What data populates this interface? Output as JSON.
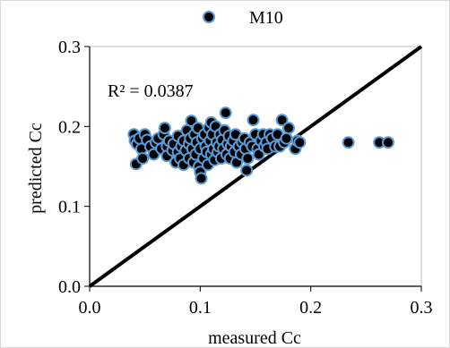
{
  "chart_data": {
    "type": "scatter",
    "title": "",
    "xlabel": "measured Cc",
    "ylabel": "predicted Cc",
    "xlim": [
      0,
      0.3
    ],
    "ylim": [
      0,
      0.3
    ],
    "x_ticks": [
      "0.0",
      "0.1",
      "0.2",
      "0.3"
    ],
    "y_ticks": [
      "0.0",
      "0.1",
      "0.2",
      "0.3"
    ],
    "grid": false,
    "legend_position": "top-center",
    "annotation": "R² = 0.0387",
    "reference_line": {
      "from": [
        0,
        0
      ],
      "to": [
        0.3,
        0.3
      ],
      "color": "#000000"
    },
    "series": [
      {
        "name": "M10",
        "marker_fill": "#000000",
        "marker_edge": "#5b9bd5",
        "points": [
          [
            0.04,
            0.19
          ],
          [
            0.041,
            0.182
          ],
          [
            0.042,
            0.153
          ],
          [
            0.043,
            0.178
          ],
          [
            0.045,
            0.185
          ],
          [
            0.047,
            0.172
          ],
          [
            0.048,
            0.16
          ],
          [
            0.05,
            0.19
          ],
          [
            0.052,
            0.183
          ],
          [
            0.055,
            0.175
          ],
          [
            0.058,
            0.165
          ],
          [
            0.06,
            0.18
          ],
          [
            0.062,
            0.185
          ],
          [
            0.065,
            0.172
          ],
          [
            0.067,
            0.19
          ],
          [
            0.068,
            0.198
          ],
          [
            0.07,
            0.175
          ],
          [
            0.07,
            0.163
          ],
          [
            0.072,
            0.182
          ],
          [
            0.075,
            0.17
          ],
          [
            0.076,
            0.178
          ],
          [
            0.078,
            0.155
          ],
          [
            0.08,
            0.188
          ],
          [
            0.08,
            0.168
          ],
          [
            0.082,
            0.16
          ],
          [
            0.083,
            0.175
          ],
          [
            0.085,
            0.182
          ],
          [
            0.085,
            0.152
          ],
          [
            0.087,
            0.17
          ],
          [
            0.088,
            0.195
          ],
          [
            0.09,
            0.178
          ],
          [
            0.09,
            0.16
          ],
          [
            0.091,
            0.185
          ],
          [
            0.092,
            0.207
          ],
          [
            0.093,
            0.172
          ],
          [
            0.094,
            0.155
          ],
          [
            0.095,
            0.19
          ],
          [
            0.096,
            0.165
          ],
          [
            0.097,
            0.18
          ],
          [
            0.098,
            0.198
          ],
          [
            0.099,
            0.15
          ],
          [
            0.1,
            0.172
          ],
          [
            0.1,
            0.143
          ],
          [
            0.101,
            0.135
          ],
          [
            0.102,
            0.185
          ],
          [
            0.103,
            0.16
          ],
          [
            0.104,
            0.19
          ],
          [
            0.105,
            0.175
          ],
          [
            0.106,
            0.168
          ],
          [
            0.107,
            0.152
          ],
          [
            0.108,
            0.198
          ],
          [
            0.109,
            0.182
          ],
          [
            0.11,
            0.205
          ],
          [
            0.11,
            0.165
          ],
          [
            0.111,
            0.19
          ],
          [
            0.112,
            0.172
          ],
          [
            0.113,
            0.158
          ],
          [
            0.114,
            0.2
          ],
          [
            0.115,
            0.18
          ],
          [
            0.116,
            0.168
          ],
          [
            0.117,
            0.175
          ],
          [
            0.118,
            0.19
          ],
          [
            0.119,
            0.16
          ],
          [
            0.12,
            0.183
          ],
          [
            0.121,
            0.172
          ],
          [
            0.122,
            0.195
          ],
          [
            0.123,
            0.217
          ],
          [
            0.124,
            0.165
          ],
          [
            0.125,
            0.178
          ],
          [
            0.126,
            0.188
          ],
          [
            0.127,
            0.16
          ],
          [
            0.128,
            0.175
          ],
          [
            0.13,
            0.182
          ],
          [
            0.131,
            0.168
          ],
          [
            0.132,
            0.19
          ],
          [
            0.133,
            0.155
          ],
          [
            0.135,
            0.175
          ],
          [
            0.137,
            0.165
          ],
          [
            0.138,
            0.18
          ],
          [
            0.14,
            0.185
          ],
          [
            0.141,
            0.172
          ],
          [
            0.142,
            0.145
          ],
          [
            0.143,
            0.16
          ],
          [
            0.145,
            0.18
          ],
          [
            0.147,
            0.175
          ],
          [
            0.148,
            0.208
          ],
          [
            0.15,
            0.19
          ],
          [
            0.152,
            0.172
          ],
          [
            0.153,
            0.165
          ],
          [
            0.155,
            0.182
          ],
          [
            0.157,
            0.19
          ],
          [
            0.158,
            0.175
          ],
          [
            0.16,
            0.18
          ],
          [
            0.161,
            0.172
          ],
          [
            0.163,
            0.19
          ],
          [
            0.165,
            0.185
          ],
          [
            0.168,
            0.175
          ],
          [
            0.17,
            0.19
          ],
          [
            0.172,
            0.175
          ],
          [
            0.174,
            0.208
          ],
          [
            0.176,
            0.18
          ],
          [
            0.178,
            0.185
          ],
          [
            0.18,
            0.198
          ],
          [
            0.186,
            0.172
          ],
          [
            0.188,
            0.182
          ],
          [
            0.19,
            0.18
          ],
          [
            0.234,
            0.18
          ],
          [
            0.262,
            0.18
          ],
          [
            0.27,
            0.18
          ]
        ]
      }
    ]
  }
}
